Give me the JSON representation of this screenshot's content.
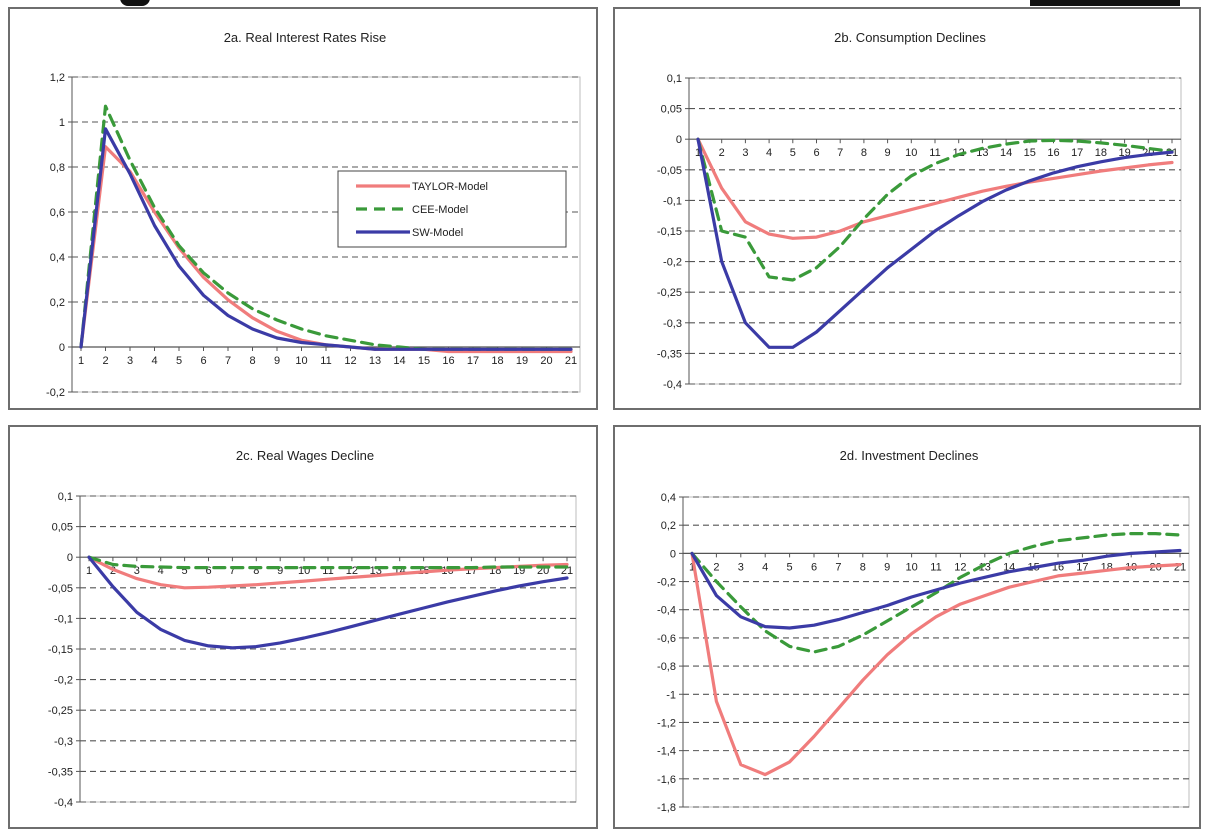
{
  "chart_data": [
    {
      "id": "2a",
      "type": "line",
      "title": "2a.  Real Interest Rates Rise",
      "xlabel": "",
      "ylabel": "",
      "x": [
        1,
        2,
        3,
        4,
        5,
        6,
        7,
        8,
        9,
        10,
        11,
        12,
        13,
        14,
        15,
        16,
        17,
        18,
        19,
        20,
        21
      ],
      "ylim": [
        -0.2,
        1.2
      ],
      "yticks": [
        "-0,2",
        "0",
        "0,2",
        "0,4",
        "0,6",
        "0,8",
        "1",
        "1,2"
      ],
      "ytick_values": [
        -0.2,
        0,
        0.2,
        0.4,
        0.6,
        0.8,
        1,
        1.2
      ],
      "xaxis_at": 0,
      "grid": "horizontal dashed",
      "legend": "center-right",
      "series": [
        {
          "name": "TAYLOR-Model",
          "color": "#f07c7c",
          "dash": "solid",
          "values": [
            0,
            0.89,
            0.78,
            0.6,
            0.44,
            0.31,
            0.21,
            0.13,
            0.07,
            0.03,
            0.01,
            0,
            -0.01,
            -0.01,
            -0.01,
            -0.02,
            -0.02,
            -0.02,
            -0.02,
            -0.02,
            -0.02
          ]
        },
        {
          "name": "CEE-Model",
          "color": "#3a9a3a",
          "dash": "dashed",
          "values": [
            0,
            1.07,
            0.83,
            0.62,
            0.45,
            0.33,
            0.24,
            0.17,
            0.12,
            0.08,
            0.05,
            0.03,
            0.01,
            0,
            -0.01,
            -0.01,
            -0.01,
            -0.01,
            -0.01,
            -0.01,
            -0.01
          ]
        },
        {
          "name": "SW-Model",
          "color": "#3b3ba6",
          "dash": "solid",
          "values": [
            0,
            0.97,
            0.77,
            0.54,
            0.36,
            0.23,
            0.14,
            0.08,
            0.04,
            0.02,
            0.01,
            0,
            -0.01,
            -0.01,
            -0.01,
            -0.01,
            -0.01,
            -0.01,
            -0.01,
            -0.01,
            -0.01
          ]
        }
      ]
    },
    {
      "id": "2b",
      "type": "line",
      "title": "2b. Consumption Declines",
      "xlabel": "",
      "ylabel": "",
      "x": [
        1,
        2,
        3,
        4,
        5,
        6,
        7,
        8,
        9,
        10,
        11,
        12,
        13,
        14,
        15,
        16,
        17,
        18,
        19,
        20,
        21
      ],
      "ylim": [
        -0.4,
        0.1
      ],
      "yticks": [
        "-0,4",
        "-0,35",
        "-0,3",
        "-0,25",
        "-0,2",
        "-0,15",
        "-0,1",
        "-0,05",
        "0",
        "0,05",
        "0,1"
      ],
      "ytick_values": [
        -0.4,
        -0.35,
        -0.3,
        -0.25,
        -0.2,
        -0.15,
        -0.1,
        -0.05,
        0,
        0.05,
        0.1
      ],
      "xaxis_at": 0,
      "grid": "horizontal dashed",
      "series": [
        {
          "name": "TAYLOR-Model",
          "color": "#f07c7c",
          "dash": "solid",
          "values": [
            0,
            -0.08,
            -0.135,
            -0.155,
            -0.162,
            -0.16,
            -0.15,
            -0.135,
            -0.125,
            -0.115,
            -0.105,
            -0.095,
            -0.085,
            -0.077,
            -0.07,
            -0.064,
            -0.058,
            -0.052,
            -0.047,
            -0.042,
            -0.038
          ]
        },
        {
          "name": "CEE-Model",
          "color": "#3a9a3a",
          "dash": "dashed",
          "values": [
            0,
            -0.15,
            -0.16,
            -0.225,
            -0.23,
            -0.21,
            -0.175,
            -0.13,
            -0.09,
            -0.06,
            -0.04,
            -0.025,
            -0.015,
            -0.008,
            -0.003,
            -0.002,
            -0.003,
            -0.006,
            -0.01,
            -0.015,
            -0.02
          ]
        },
        {
          "name": "SW-Model",
          "color": "#3b3ba6",
          "dash": "solid",
          "values": [
            0,
            -0.2,
            -0.3,
            -0.34,
            -0.34,
            -0.315,
            -0.28,
            -0.245,
            -0.21,
            -0.18,
            -0.15,
            -0.125,
            -0.102,
            -0.083,
            -0.068,
            -0.055,
            -0.045,
            -0.037,
            -0.03,
            -0.025,
            -0.021
          ]
        }
      ]
    },
    {
      "id": "2c",
      "type": "line",
      "title": "2c.  Real Wages Decline",
      "xlabel": "",
      "ylabel": "",
      "x": [
        1,
        2,
        3,
        4,
        5,
        6,
        7,
        8,
        9,
        10,
        11,
        12,
        13,
        14,
        15,
        16,
        17,
        18,
        19,
        20,
        21
      ],
      "ylim": [
        -0.4,
        0.1
      ],
      "yticks": [
        "-0,4",
        "-0,35",
        "-0,3",
        "-0,25",
        "-0,2",
        "-0,15",
        "-0,1",
        "-0,05",
        "0",
        "0,05",
        "0,1"
      ],
      "ytick_values": [
        -0.4,
        -0.35,
        -0.3,
        -0.25,
        -0.2,
        -0.15,
        -0.1,
        -0.05,
        0,
        0.05,
        0.1
      ],
      "xaxis_at": 0,
      "grid": "horizontal dashed",
      "series": [
        {
          "name": "TAYLOR-Model",
          "color": "#f07c7c",
          "dash": "solid",
          "values": [
            0,
            -0.02,
            -0.035,
            -0.045,
            -0.05,
            -0.049,
            -0.047,
            -0.045,
            -0.042,
            -0.039,
            -0.036,
            -0.033,
            -0.03,
            -0.027,
            -0.024,
            -0.021,
            -0.019,
            -0.017,
            -0.015,
            -0.013,
            -0.012
          ]
        },
        {
          "name": "CEE-Model",
          "color": "#3a9a3a",
          "dash": "dashed",
          "values": [
            0,
            -0.012,
            -0.015,
            -0.016,
            -0.017,
            -0.017,
            -0.017,
            -0.017,
            -0.017,
            -0.017,
            -0.017,
            -0.017,
            -0.017,
            -0.017,
            -0.017,
            -0.017,
            -0.017,
            -0.016,
            -0.016,
            -0.016,
            -0.016
          ]
        },
        {
          "name": "SW-Model",
          "color": "#3b3ba6",
          "dash": "solid",
          "values": [
            0,
            -0.048,
            -0.09,
            -0.118,
            -0.136,
            -0.145,
            -0.148,
            -0.146,
            -0.14,
            -0.132,
            -0.123,
            -0.113,
            -0.103,
            -0.093,
            -0.083,
            -0.073,
            -0.064,
            -0.055,
            -0.047,
            -0.04,
            -0.034
          ]
        }
      ]
    },
    {
      "id": "2d",
      "type": "line",
      "title": "2d. Investment Declines",
      "xlabel": "",
      "ylabel": "",
      "x": [
        1,
        2,
        3,
        4,
        5,
        6,
        7,
        8,
        9,
        10,
        11,
        12,
        13,
        14,
        15,
        16,
        17,
        18,
        19,
        20,
        21
      ],
      "ylim": [
        -1.8,
        0.4
      ],
      "yticks": [
        "-1,8",
        "-1,6",
        "-1,4",
        "-1,2",
        "-1",
        "-0,8",
        "-0,6",
        "-0,4",
        "-0,2",
        "0",
        "0,2",
        "0,4"
      ],
      "ytick_values": [
        -1.8,
        -1.6,
        -1.4,
        -1.2,
        -1,
        -0.8,
        -0.6,
        -0.4,
        -0.2,
        0,
        0.2,
        0.4
      ],
      "xaxis_at": 0,
      "grid": "horizontal dashed",
      "series": [
        {
          "name": "TAYLOR-Model",
          "color": "#f07c7c",
          "dash": "solid",
          "values": [
            0,
            -1.05,
            -1.5,
            -1.57,
            -1.48,
            -1.3,
            -1.1,
            -0.9,
            -0.72,
            -0.57,
            -0.45,
            -0.36,
            -0.3,
            -0.24,
            -0.2,
            -0.16,
            -0.14,
            -0.12,
            -0.1,
            -0.09,
            -0.08
          ]
        },
        {
          "name": "CEE-Model",
          "color": "#3a9a3a",
          "dash": "dashed",
          "values": [
            0,
            -0.2,
            -0.38,
            -0.55,
            -0.66,
            -0.7,
            -0.66,
            -0.58,
            -0.48,
            -0.38,
            -0.28,
            -0.17,
            -0.08,
            0,
            0.05,
            0.09,
            0.11,
            0.13,
            0.14,
            0.14,
            0.13
          ]
        },
        {
          "name": "SW-Model",
          "color": "#3b3ba6",
          "dash": "solid",
          "values": [
            0,
            -0.3,
            -0.45,
            -0.52,
            -0.53,
            -0.51,
            -0.47,
            -0.42,
            -0.37,
            -0.31,
            -0.26,
            -0.21,
            -0.17,
            -0.13,
            -0.1,
            -0.07,
            -0.05,
            -0.02,
            0,
            0.01,
            0.02
          ]
        }
      ]
    }
  ]
}
